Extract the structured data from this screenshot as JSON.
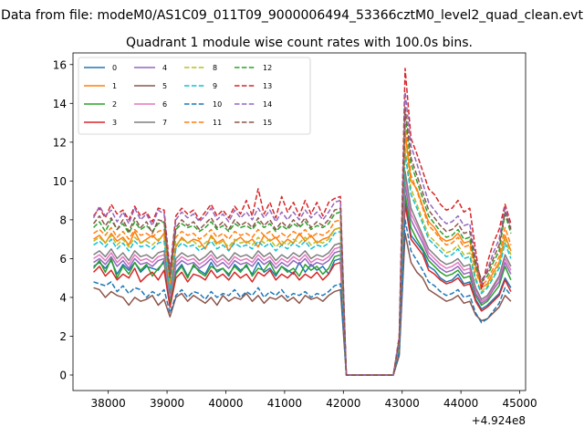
{
  "figure": {
    "suptitle": "Data from file: modeM0/AS1C09_011T09_9000006494_53366cztM0_level2_quad_clean.evt",
    "offset_text": "+4.924e8"
  },
  "chart_data": {
    "type": "line",
    "title": "Quadrant 1 module wise count rates with 100.0s bins.",
    "xlabel": "",
    "ylabel": "",
    "x_offset": 492400000,
    "xlim": [
      37400,
      45100
    ],
    "ylim": [
      -0.8,
      16.6
    ],
    "xticks": [
      38000,
      39000,
      40000,
      41000,
      42000,
      43000,
      44000,
      45000
    ],
    "yticks": [
      0,
      2,
      4,
      6,
      8,
      10,
      12,
      14,
      16
    ],
    "x_start": 37750,
    "x_step": 100,
    "grid": false,
    "legend": {
      "placement": "top-left",
      "columns": 4
    },
    "series": [
      {
        "name": "0",
        "color": "#1f77b4",
        "dash": "solid",
        "values": [
          5.6,
          5.8,
          5.5,
          5.9,
          5.2,
          5.7,
          5.4,
          5.8,
          5.3,
          5.6,
          5.5,
          5.4,
          5.9,
          3.6,
          5.3,
          5.7,
          5.1,
          5.6,
          5.4,
          5.2,
          5.8,
          5.3,
          5.5,
          5.1,
          5.7,
          5.4,
          5.6,
          5.2,
          5.8,
          5.3,
          5.5,
          5.1,
          5.6,
          5.4,
          5.2,
          5.8,
          5.3,
          5.7,
          5.4,
          5.6,
          5.2,
          5.9,
          6.0,
          0,
          0,
          0,
          0,
          0,
          0,
          0,
          0,
          0,
          1.2,
          9.0,
          7.2,
          6.8,
          6.4,
          5.6,
          5.4,
          5.0,
          4.8,
          4.9,
          5.2,
          4.7,
          4.8,
          3.9,
          3.4,
          3.6,
          3.9,
          4.2,
          5.0,
          4.5
        ]
      },
      {
        "name": "1",
        "color": "#ff7f0e",
        "dash": "solid",
        "values": [
          7.0,
          7.2,
          6.8,
          7.3,
          6.9,
          7.1,
          6.7,
          7.4,
          6.8,
          7.0,
          7.2,
          6.9,
          7.3,
          4.2,
          6.6,
          7.1,
          6.8,
          7.0,
          6.9,
          6.5,
          7.2,
          6.8,
          7.0,
          6.4,
          6.9,
          7.1,
          6.8,
          7.0,
          6.6,
          7.2,
          6.9,
          7.1,
          6.7,
          7.0,
          6.8,
          7.3,
          6.9,
          7.2,
          6.8,
          7.0,
          7.1,
          7.5,
          7.6,
          0,
          0,
          0,
          0,
          0,
          0,
          0,
          0,
          0,
          1.5,
          12.5,
          10.0,
          9.6,
          8.7,
          7.9,
          7.6,
          7.1,
          6.9,
          7.0,
          7.3,
          6.8,
          6.9,
          5.6,
          4.5,
          4.7,
          5.3,
          5.8,
          7.2,
          6.4
        ]
      },
      {
        "name": "2",
        "color": "#2ca02c",
        "dash": "solid",
        "values": [
          5.5,
          5.9,
          5.3,
          6.0,
          5.0,
          5.6,
          5.2,
          5.8,
          5.4,
          5.7,
          5.1,
          5.5,
          5.8,
          3.7,
          5.2,
          5.6,
          5.0,
          5.7,
          5.3,
          5.1,
          5.6,
          5.4,
          5.5,
          5.2,
          5.6,
          5.3,
          5.7,
          5.1,
          5.5,
          5.4,
          5.8,
          5.2,
          5.6,
          5.3,
          5.5,
          5.1,
          5.7,
          5.4,
          5.6,
          5.2,
          5.5,
          6.1,
          6.2,
          0,
          0,
          0,
          0,
          0,
          0,
          0,
          0,
          0,
          1.3,
          9.3,
          7.6,
          7.0,
          6.5,
          5.9,
          5.6,
          5.3,
          5.1,
          5.2,
          5.4,
          5.0,
          5.1,
          4.1,
          3.6,
          3.8,
          4.2,
          4.6,
          5.6,
          4.9
        ]
      },
      {
        "name": "3",
        "color": "#d62728",
        "dash": "solid",
        "values": [
          5.3,
          5.6,
          5.1,
          5.4,
          4.9,
          5.2,
          5.0,
          5.5,
          4.8,
          5.1,
          5.3,
          4.9,
          5.4,
          3.5,
          5.0,
          5.3,
          4.8,
          5.2,
          5.1,
          4.9,
          5.4,
          5.0,
          5.2,
          4.9,
          5.3,
          5.0,
          5.2,
          4.8,
          5.3,
          5.1,
          5.4,
          4.9,
          5.2,
          5.0,
          5.3,
          4.9,
          5.2,
          5.0,
          5.3,
          4.9,
          5.2,
          5.7,
          5.8,
          0,
          0,
          0,
          0,
          0,
          0,
          0,
          0,
          0,
          1.2,
          8.8,
          7.0,
          6.6,
          6.2,
          5.4,
          5.2,
          4.9,
          4.7,
          4.8,
          5.0,
          4.6,
          4.7,
          3.8,
          3.3,
          3.5,
          3.8,
          4.1,
          4.9,
          4.3
        ]
      },
      {
        "name": "4",
        "color": "#9467bd",
        "dash": "solid",
        "values": [
          5.8,
          6.0,
          5.7,
          6.1,
          5.6,
          5.9,
          5.5,
          6.0,
          5.7,
          5.8,
          5.6,
          5.9,
          6.0,
          4.0,
          5.6,
          5.9,
          5.7,
          5.8,
          5.5,
          5.7,
          6.0,
          5.6,
          5.8,
          5.5,
          5.9,
          5.7,
          5.8,
          5.6,
          6.0,
          5.7,
          5.9,
          5.5,
          5.8,
          5.6,
          5.9,
          5.7,
          6.0,
          5.6,
          5.8,
          5.7,
          5.9,
          6.3,
          6.4,
          0,
          0,
          0,
          0,
          0,
          0,
          0,
          0,
          0,
          1.3,
          9.8,
          8.0,
          7.4,
          6.8,
          6.1,
          5.8,
          5.5,
          5.3,
          5.4,
          5.6,
          5.2,
          5.3,
          4.2,
          3.7,
          3.9,
          4.4,
          4.8,
          5.8,
          5.2
        ]
      },
      {
        "name": "5",
        "color": "#8c564b",
        "dash": "solid",
        "values": [
          4.5,
          4.4,
          4.0,
          4.3,
          4.1,
          4.0,
          3.6,
          4.0,
          3.8,
          3.9,
          4.1,
          3.6,
          3.9,
          3.0,
          4.0,
          4.2,
          3.8,
          4.1,
          3.9,
          3.7,
          4.0,
          3.6,
          4.1,
          3.8,
          4.0,
          3.9,
          4.2,
          3.8,
          4.1,
          3.7,
          4.0,
          3.9,
          4.1,
          3.8,
          4.0,
          3.7,
          4.1,
          3.9,
          4.0,
          3.8,
          4.1,
          4.3,
          4.4,
          0,
          0,
          0,
          0,
          0,
          0,
          0,
          0,
          0,
          1.0,
          7.3,
          5.8,
          5.3,
          5.0,
          4.4,
          4.2,
          4.0,
          3.8,
          3.9,
          4.1,
          3.7,
          3.8,
          3.1,
          2.8,
          2.9,
          3.2,
          3.5,
          4.1,
          3.8
        ]
      },
      {
        "name": "6",
        "color": "#e377c2",
        "dash": "solid",
        "values": [
          6.0,
          6.2,
          5.9,
          6.3,
          5.8,
          6.1,
          5.7,
          6.2,
          5.9,
          6.0,
          5.8,
          6.1,
          6.2,
          4.1,
          5.8,
          6.1,
          5.9,
          6.0,
          5.7,
          5.9,
          6.2,
          5.8,
          6.0,
          5.7,
          6.1,
          5.9,
          6.0,
          5.8,
          6.2,
          5.9,
          6.1,
          5.7,
          6.0,
          5.8,
          6.1,
          5.9,
          6.2,
          5.8,
          6.0,
          5.9,
          6.1,
          6.5,
          6.6,
          0,
          0,
          0,
          0,
          0,
          0,
          0,
          0,
          0,
          1.4,
          10.2,
          8.3,
          7.7,
          7.0,
          6.3,
          6.0,
          5.7,
          5.5,
          5.6,
          5.8,
          5.4,
          5.5,
          4.4,
          3.8,
          4.0,
          4.5,
          5.0,
          6.0,
          5.4
        ]
      },
      {
        "name": "7",
        "color": "#7f7f7f",
        "dash": "solid",
        "values": [
          6.2,
          6.4,
          6.1,
          6.5,
          6.0,
          6.3,
          5.9,
          6.4,
          6.1,
          6.2,
          6.0,
          6.3,
          6.4,
          4.2,
          6.0,
          6.3,
          6.1,
          6.2,
          5.9,
          6.1,
          6.4,
          6.0,
          6.2,
          5.9,
          6.3,
          6.1,
          6.2,
          6.0,
          6.4,
          6.1,
          6.3,
          5.9,
          6.2,
          6.0,
          6.3,
          6.1,
          6.4,
          6.0,
          6.2,
          6.1,
          6.3,
          6.7,
          6.8,
          0,
          0,
          0,
          0,
          0,
          0,
          0,
          0,
          0,
          1.4,
          10.5,
          8.6,
          7.9,
          7.2,
          6.5,
          6.2,
          5.9,
          5.7,
          5.8,
          6.0,
          5.6,
          5.7,
          4.5,
          3.9,
          4.1,
          4.6,
          5.1,
          6.2,
          5.6
        ]
      },
      {
        "name": "8",
        "color": "#bcbd22",
        "dash": "dashed",
        "values": [
          6.9,
          7.1,
          6.8,
          7.2,
          6.7,
          7.0,
          6.6,
          7.1,
          6.8,
          6.9,
          6.7,
          7.0,
          7.1,
          4.5,
          6.7,
          7.0,
          6.8,
          6.9,
          6.6,
          6.8,
          7.1,
          6.7,
          6.9,
          6.6,
          7.0,
          6.8,
          6.9,
          6.7,
          7.1,
          6.8,
          7.0,
          6.6,
          6.9,
          6.7,
          7.0,
          6.8,
          7.1,
          6.7,
          6.9,
          6.8,
          7.0,
          7.5,
          7.6,
          0,
          0,
          0,
          0,
          0,
          0,
          0,
          0,
          0,
          1.6,
          11.8,
          9.6,
          8.8,
          8.0,
          7.2,
          6.9,
          6.6,
          6.3,
          6.4,
          6.7,
          6.2,
          6.3,
          5.0,
          4.3,
          4.6,
          5.1,
          5.7,
          7.0,
          6.2
        ]
      },
      {
        "name": "9",
        "color": "#17becf",
        "dash": "dashed",
        "values": [
          6.7,
          6.9,
          6.6,
          7.0,
          6.5,
          6.8,
          6.4,
          6.9,
          6.6,
          6.7,
          6.5,
          6.8,
          6.9,
          4.4,
          6.5,
          6.8,
          6.6,
          6.7,
          6.4,
          6.6,
          6.9,
          6.5,
          6.7,
          6.4,
          6.8,
          6.6,
          6.7,
          6.5,
          6.9,
          6.6,
          6.8,
          6.4,
          6.7,
          6.5,
          6.8,
          6.6,
          6.9,
          6.5,
          6.7,
          6.6,
          6.8,
          7.3,
          7.4,
          0,
          0,
          0,
          0,
          0,
          0,
          0,
          0,
          0,
          1.5,
          11.4,
          9.3,
          8.6,
          7.8,
          7.0,
          6.7,
          6.4,
          6.1,
          6.2,
          6.5,
          6.0,
          6.1,
          4.9,
          4.2,
          4.5,
          5.0,
          5.5,
          6.8,
          6.0
        ]
      },
      {
        "name": "10",
        "color": "#1f77b4",
        "dash": "dashed",
        "values": [
          4.8,
          4.7,
          4.6,
          4.8,
          4.3,
          4.6,
          4.2,
          4.5,
          4.4,
          4.0,
          4.3,
          4.1,
          4.4,
          3.2,
          4.1,
          4.4,
          4.0,
          4.3,
          4.2,
          3.9,
          4.3,
          4.0,
          4.2,
          4.1,
          4.4,
          4.0,
          4.3,
          4.1,
          4.5,
          4.0,
          4.3,
          4.1,
          4.4,
          4.0,
          4.2,
          4.1,
          4.3,
          4.0,
          4.2,
          4.1,
          4.3,
          4.6,
          4.7,
          0,
          0,
          0,
          0,
          0,
          0,
          0,
          0,
          0,
          1.1,
          8.0,
          6.4,
          5.9,
          5.4,
          4.8,
          4.6,
          4.3,
          4.1,
          4.2,
          4.4,
          4.0,
          4.1,
          3.2,
          2.7,
          2.9,
          3.3,
          3.7,
          4.5,
          4.1
        ]
      },
      {
        "name": "11",
        "color": "#ff7f0e",
        "dash": "dashed",
        "values": [
          7.3,
          7.5,
          7.2,
          7.6,
          7.1,
          7.4,
          7.0,
          7.5,
          7.2,
          7.3,
          7.1,
          7.4,
          7.5,
          4.7,
          7.1,
          7.4,
          7.2,
          7.3,
          7.0,
          7.2,
          7.5,
          7.1,
          7.3,
          7.0,
          7.4,
          7.2,
          7.3,
          7.1,
          7.5,
          7.2,
          7.4,
          7.0,
          7.3,
          7.1,
          7.4,
          7.2,
          7.5,
          7.1,
          7.3,
          7.2,
          7.4,
          7.9,
          8.0,
          0,
          0,
          0,
          0,
          0,
          0,
          0,
          0,
          0,
          1.7,
          12.8,
          10.3,
          9.5,
          8.6,
          7.7,
          7.4,
          7.0,
          6.7,
          6.8,
          7.1,
          6.6,
          6.7,
          5.3,
          4.6,
          4.9,
          5.5,
          6.1,
          7.6,
          6.7
        ]
      },
      {
        "name": "12",
        "color": "#2ca02c",
        "dash": "dashed",
        "values": [
          7.6,
          7.9,
          7.4,
          8.0,
          7.5,
          7.8,
          7.3,
          7.9,
          7.5,
          7.7,
          7.4,
          7.8,
          7.9,
          5.0,
          7.5,
          7.8,
          7.6,
          7.7,
          7.4,
          7.6,
          7.9,
          7.5,
          7.7,
          7.4,
          7.8,
          7.6,
          7.7,
          7.5,
          7.9,
          7.6,
          7.8,
          7.4,
          7.7,
          7.5,
          7.8,
          7.6,
          7.9,
          7.5,
          7.7,
          7.6,
          7.8,
          8.3,
          8.4,
          0,
          0,
          0,
          0,
          0,
          0,
          0,
          0,
          0,
          1.8,
          13.4,
          10.9,
          10.0,
          9.1,
          8.2,
          7.8,
          7.4,
          7.1,
          7.2,
          7.5,
          7.0,
          7.1,
          5.6,
          4.8,
          5.1,
          5.8,
          6.4,
          8.3,
          7.3
        ]
      },
      {
        "name": "13",
        "color": "#d62728",
        "dash": "dashed",
        "values": [
          8.2,
          8.6,
          8.1,
          8.8,
          8.3,
          8.5,
          8.0,
          8.7,
          8.2,
          8.4,
          7.9,
          8.6,
          8.5,
          5.4,
          8.2,
          8.6,
          8.3,
          8.5,
          8.0,
          8.4,
          8.8,
          8.2,
          8.5,
          8.1,
          8.7,
          8.3,
          9.0,
          8.2,
          9.6,
          8.3,
          8.9,
          8.1,
          9.2,
          8.4,
          8.9,
          8.2,
          9.0,
          8.3,
          8.9,
          8.2,
          8.9,
          9.1,
          9.2,
          0,
          0,
          0,
          0,
          0,
          0,
          0,
          0,
          0,
          2.0,
          15.8,
          12.2,
          11.4,
          10.5,
          9.6,
          9.3,
          8.8,
          8.5,
          8.6,
          9.0,
          8.4,
          8.6,
          6.4,
          4.4,
          5.8,
          6.8,
          7.5,
          8.8,
          7.8
        ]
      },
      {
        "name": "14",
        "color": "#9467bd",
        "dash": "dashed",
        "values": [
          8.1,
          8.7,
          8.2,
          8.5,
          7.9,
          8.4,
          7.8,
          8.6,
          8.0,
          8.3,
          7.7,
          8.5,
          8.3,
          5.2,
          8.0,
          8.4,
          8.1,
          8.3,
          7.9,
          8.2,
          8.6,
          8.0,
          8.3,
          7.9,
          8.5,
          8.1,
          8.4,
          8.0,
          8.6,
          8.1,
          8.5,
          7.9,
          8.4,
          8.0,
          8.4,
          8.0,
          8.5,
          8.1,
          8.4,
          8.0,
          8.4,
          8.9,
          9.0,
          0,
          0,
          0,
          0,
          0,
          0,
          0,
          0,
          0,
          1.9,
          14.6,
          11.8,
          10.9,
          9.9,
          8.9,
          8.5,
          8.1,
          7.8,
          7.9,
          8.2,
          7.7,
          7.8,
          6.0,
          4.7,
          5.4,
          6.3,
          7.0,
          8.6,
          7.6
        ]
      },
      {
        "name": "15",
        "color": "#8c564b",
        "dash": "dashed",
        "values": [
          7.8,
          8.2,
          7.7,
          8.1,
          7.5,
          8.0,
          7.4,
          8.1,
          7.6,
          7.9,
          7.3,
          8.0,
          7.9,
          5.0,
          7.6,
          8.0,
          7.7,
          7.9,
          7.5,
          7.8,
          8.1,
          7.6,
          7.9,
          7.5,
          8.0,
          7.7,
          7.9,
          7.6,
          8.1,
          7.7,
          8.0,
          7.5,
          7.9,
          7.6,
          8.0,
          7.7,
          8.1,
          7.6,
          7.9,
          7.7,
          8.0,
          8.5,
          8.6,
          0,
          0,
          0,
          0,
          0,
          0,
          0,
          0,
          0,
          1.8,
          13.8,
          11.2,
          10.3,
          9.4,
          8.5,
          8.1,
          7.7,
          7.4,
          7.5,
          7.8,
          7.3,
          7.4,
          5.8,
          4.9,
          5.3,
          6.0,
          6.7,
          8.4,
          7.5
        ]
      }
    ]
  }
}
